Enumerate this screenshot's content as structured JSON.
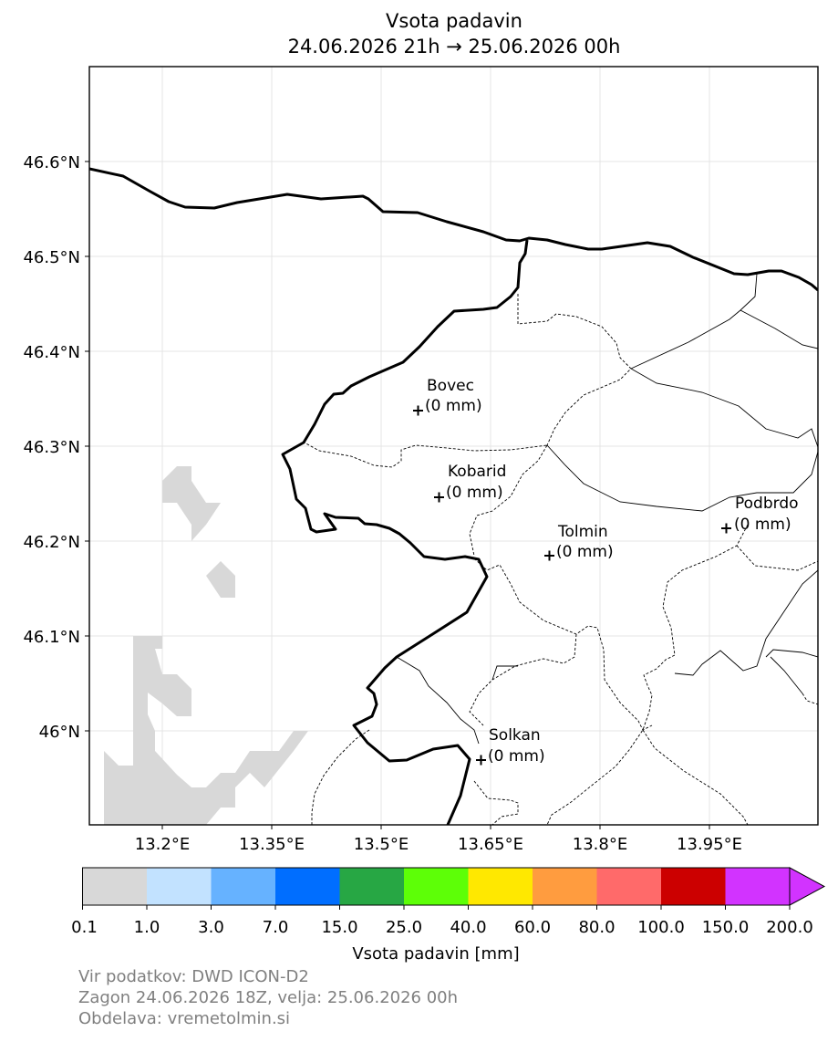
{
  "title": "Vsota padavin",
  "subtitle": "24.06.2026 21h → 25.06.2026 00h",
  "map": {
    "lat_ticks": [
      "46.6°N",
      "46.5°N",
      "46.4°N",
      "46.3°N",
      "46.2°N",
      "46.1°N",
      "46°N"
    ],
    "lon_ticks": [
      "13.2°E",
      "13.35°E",
      "13.5°E",
      "13.65°E",
      "13.8°E",
      "13.95°E"
    ],
    "places": [
      {
        "name": "Bovec",
        "value": "(0 mm)",
        "lat": 46.338,
        "lon": 13.553
      },
      {
        "name": "Kobarid",
        "value": "(0 mm)",
        "lat": 46.247,
        "lon": 13.583
      },
      {
        "name": "Tolmin",
        "value": "(0 mm)",
        "lat": 46.184,
        "lon": 13.733
      },
      {
        "name": "Podbrdo",
        "value": "(0 mm)",
        "lat": 46.213,
        "lon": 13.973
      },
      {
        "name": "Solkan",
        "value": "(0 mm)",
        "lat": 45.968,
        "lon": 13.641
      }
    ],
    "precip_colors": [
      "#d8d8d8"
    ]
  },
  "colorbar": {
    "label": "Vsota padavin [mm]",
    "ticks": [
      "0.1",
      "1.0",
      "3.0",
      "7.0",
      "15.0",
      "25.0",
      "40.0",
      "60.0",
      "80.0",
      "100.0",
      "150.0",
      "200.0"
    ],
    "colors": [
      "#d8d8d8",
      "#c2e2ff",
      "#66b2ff",
      "#006eff",
      "#27a744",
      "#5dff07",
      "#ffe800",
      "#ff9c3f",
      "#ff6a6a",
      "#cc0000",
      "#d233ff"
    ],
    "extend_color": "#d233ff"
  },
  "footer": {
    "line1": "Vir podatkov: DWD ICON-D2",
    "line2": "Zagon 24.06.2026 18Z, velja: 25.06.2026 00h",
    "line3": "Obdelava: vremetolmin.si"
  }
}
